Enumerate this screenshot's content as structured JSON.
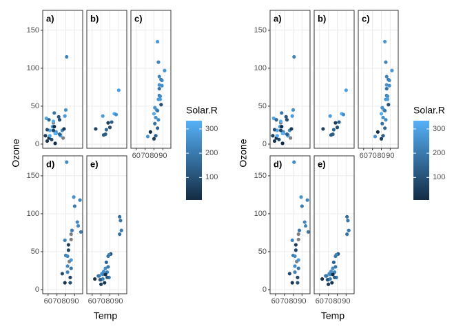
{
  "chart_data": [
    {
      "type": "scatter",
      "xlabel": "Temp",
      "ylabel": "Ozone",
      "xlim": [
        53.95,
        99.05
      ],
      "xticks": [
        60,
        70,
        80,
        90
      ],
      "ylim": [
        -5.5,
        176.3
      ],
      "yticks": [
        0,
        50,
        100,
        150
      ],
      "grid": true,
      "na_color": "#7f7f7f",
      "colorbar": {
        "title": "Solar.R",
        "lim": [
          7,
          334
        ],
        "ticks": [
          100,
          200,
          300
        ],
        "colors": [
          "#132B43",
          "#56B1F7"
        ]
      },
      "facets": [
        {
          "label": "a)",
          "x": [
            67,
            72,
            74,
            62,
            66,
            65,
            59,
            61,
            69,
            74,
            69,
            66,
            68,
            58,
            64,
            66,
            57,
            68,
            62,
            59,
            73,
            81,
            79,
            76,
            78,
            73,
            80,
            77,
            61,
            67
          ],
          "y": [
            41,
            36,
            12,
            18,
            28,
            23,
            19,
            8,
            16,
            11,
            14,
            18,
            14,
            34,
            6,
            30,
            11,
            1,
            11,
            4,
            32,
            115,
            37,
            18,
            20,
            13,
            45,
            8,
            32,
            23
          ],
          "color": [
            190,
            118,
            149,
            313,
            null,
            299,
            99,
            19,
            256,
            290,
            274,
            65,
            334,
            307,
            78,
            322,
            44,
            8,
            320,
            25,
            92,
            223,
            279,
            224,
            37,
            137,
            252,
            null,
            150,
            13
          ]
        },
        {
          "label": "b)",
          "x": [
            64,
            72,
            73,
            75,
            76,
            78,
            80,
            82,
            85,
            90,
            87
          ],
          "y": [
            20,
            37,
            12,
            13,
            19,
            28,
            22,
            29,
            40,
            71,
            39
          ],
          "color": [
            64,
            286,
            120,
            137,
            150,
            59,
            91,
            127,
            322,
            291,
            250
          ]
        },
        {
          "label": "c)",
          "x": [
            84,
            92,
            85,
            86,
            88,
            89,
            86,
            89,
            86,
            86,
            87,
            85,
            88,
            81,
            83,
            80,
            82,
            85,
            81,
            84,
            76,
            82,
            73,
            80,
            84,
            87
          ],
          "y": [
            135,
            97,
            108,
            89,
            85,
            84,
            78,
            77,
            73,
            64,
            63,
            59,
            52,
            48,
            45,
            40,
            35,
            32,
            27,
            21,
            16,
            11,
            10,
            7,
            44,
            59
          ],
          "color": [
            269,
            267,
            223,
            229,
            188,
            237,
            258,
            255,
            183,
            175,
            248,
            264,
            98,
            260,
            274,
            314,
            253,
            238,
            175,
            148,
            7,
            139,
            264,
            48,
            190,
            285
          ]
        },
        {
          "label": "d)",
          "x": [
            81,
            89,
            96,
            90,
            93,
            94,
            97,
            87,
            86,
            86,
            79,
            83,
            80,
            82,
            84,
            84,
            82,
            82,
            76,
            85,
            79,
            85,
            86,
            83,
            86
          ],
          "y": [
            168,
            122,
            118,
            110,
            89,
            84,
            76,
            78,
            73,
            66,
            65,
            59,
            45,
            44,
            37,
            null,
            31,
            23,
            21,
            16,
            9,
            9,
            28,
            52,
            39
          ],
          "color": [
            238,
            255,
            225,
            207,
            229,
            237,
            203,
            197,
            null,
            null,
            222,
            51,
            212,
            236,
            null,
            215,
            244,
            220,
            78,
            77,
            24,
            95,
            189,
            82,
            273
          ]
        },
        {
          "label": "e)",
          "x": [
            91,
            92,
            93,
            91,
            81,
            79,
            78,
            76,
            78,
            75,
            73,
            77,
            71,
            72,
            68,
            79,
            63,
            72,
            70,
            69,
            74,
            70,
            75,
            77,
            67
          ],
          "y": [
            96,
            91,
            78,
            73,
            47,
            46,
            44,
            36,
            30,
            28,
            24,
            23,
            21,
            20,
            18,
            16,
            14,
            14,
            13,
            13,
            9,
            7,
            20,
            16,
            18
          ],
          "color": [
            167,
            189,
            197,
            183,
            95,
            237,
            192,
            139,
            193,
            238,
            259,
            220,
            259,
            230,
            224,
            201,
            20,
            191,
            238,
            112,
            24,
            49,
            14,
            131,
            191
          ]
        }
      ]
    },
    {
      "type": "scatter",
      "xlabel": "Temp",
      "ylabel": "Ozone",
      "xlim": [
        53.95,
        99.05
      ],
      "xticks": [
        60,
        70,
        80,
        90
      ],
      "ylim": [
        -5.5,
        176.3
      ],
      "yticks": [
        0,
        50,
        100,
        150
      ],
      "grid": true,
      "na_color": "#7f7f7f",
      "colorbar": {
        "title": "Solar.R",
        "lim": [
          7,
          334
        ],
        "ticks": [
          100,
          200,
          300
        ],
        "colors": [
          "#132B43",
          "#56B1F7"
        ]
      },
      "facets": [
        {
          "label": "a)",
          "x": [
            67,
            72,
            74,
            62,
            66,
            65,
            59,
            61,
            69,
            74,
            69,
            66,
            68,
            58,
            64,
            66,
            57,
            68,
            62,
            59,
            73,
            81,
            79,
            76,
            78,
            73,
            80,
            77,
            61,
            67
          ],
          "y": [
            41,
            36,
            12,
            18,
            28,
            23,
            19,
            8,
            16,
            11,
            14,
            18,
            14,
            34,
            6,
            30,
            11,
            1,
            11,
            4,
            32,
            115,
            37,
            18,
            20,
            13,
            45,
            8,
            32,
            23
          ],
          "color": [
            190,
            118,
            149,
            313,
            null,
            299,
            99,
            19,
            256,
            290,
            274,
            65,
            334,
            307,
            78,
            322,
            44,
            8,
            320,
            25,
            92,
            223,
            279,
            224,
            37,
            137,
            252,
            null,
            150,
            13
          ]
        },
        {
          "label": "b)",
          "x": [
            64,
            72,
            73,
            75,
            76,
            78,
            80,
            82,
            85,
            90,
            87
          ],
          "y": [
            20,
            37,
            12,
            13,
            19,
            28,
            22,
            29,
            40,
            71,
            39
          ],
          "color": [
            64,
            286,
            120,
            137,
            150,
            59,
            91,
            127,
            322,
            291,
            250
          ]
        },
        {
          "label": "c)",
          "x": [
            84,
            92,
            85,
            86,
            88,
            89,
            86,
            89,
            86,
            86,
            87,
            85,
            88,
            81,
            83,
            80,
            82,
            85,
            81,
            84,
            76,
            82,
            73,
            80,
            84,
            87
          ],
          "y": [
            135,
            97,
            108,
            89,
            85,
            84,
            78,
            77,
            73,
            64,
            63,
            59,
            52,
            48,
            45,
            40,
            35,
            32,
            27,
            21,
            16,
            11,
            10,
            7,
            44,
            59
          ],
          "color": [
            269,
            267,
            223,
            229,
            188,
            237,
            258,
            255,
            183,
            175,
            248,
            264,
            98,
            260,
            274,
            314,
            253,
            238,
            175,
            148,
            7,
            139,
            264,
            48,
            190,
            285
          ]
        },
        {
          "label": "d)",
          "x": [
            81,
            89,
            96,
            90,
            93,
            94,
            97,
            87,
            86,
            86,
            79,
            83,
            80,
            82,
            84,
            84,
            82,
            82,
            76,
            85,
            79,
            85,
            86,
            83,
            86
          ],
          "y": [
            168,
            122,
            118,
            110,
            89,
            84,
            76,
            78,
            73,
            66,
            65,
            59,
            45,
            44,
            37,
            null,
            31,
            23,
            21,
            16,
            9,
            9,
            28,
            52,
            39
          ],
          "color": [
            238,
            255,
            225,
            207,
            229,
            237,
            203,
            197,
            null,
            null,
            222,
            51,
            212,
            236,
            null,
            215,
            244,
            220,
            78,
            77,
            24,
            95,
            189,
            82,
            273
          ]
        },
        {
          "label": "e)",
          "x": [
            91,
            92,
            93,
            91,
            81,
            79,
            78,
            76,
            78,
            75,
            73,
            77,
            71,
            72,
            68,
            79,
            63,
            72,
            70,
            69,
            74,
            70,
            75,
            77,
            67
          ],
          "y": [
            96,
            91,
            78,
            73,
            47,
            46,
            44,
            36,
            30,
            28,
            24,
            23,
            21,
            20,
            18,
            16,
            14,
            14,
            13,
            13,
            9,
            7,
            20,
            16,
            18
          ],
          "color": [
            167,
            189,
            197,
            183,
            95,
            237,
            192,
            139,
            193,
            238,
            259,
            220,
            259,
            230,
            224,
            201,
            20,
            191,
            238,
            112,
            24,
            49,
            14,
            131,
            191
          ]
        }
      ]
    }
  ]
}
